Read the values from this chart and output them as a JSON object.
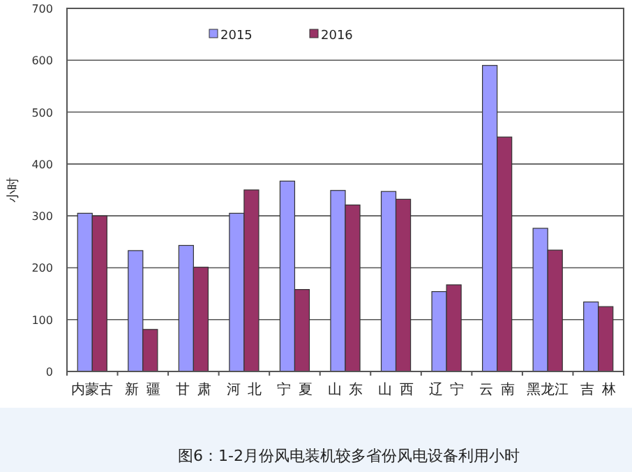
{
  "chart_data": {
    "type": "bar",
    "categories": [
      "内蒙古",
      "新疆",
      "甘肃",
      "河北",
      "宁夏",
      "山东",
      "山西",
      "辽宁",
      "云南",
      "黑龙江",
      "吉林"
    ],
    "series": [
      {
        "name": "2015",
        "color": "#9999ff",
        "values": [
          305,
          233,
          243,
          305,
          367,
          349,
          347,
          154,
          590,
          276,
          134
        ]
      },
      {
        "name": "2016",
        "color": "#993366",
        "values": [
          300,
          81,
          201,
          350,
          158,
          321,
          332,
          167,
          452,
          234,
          125
        ]
      }
    ],
    "ylabel": "小时",
    "ylim": [
      0,
      700
    ],
    "yticks": [
      0,
      100,
      200,
      300,
      400,
      500,
      600,
      700
    ],
    "grid": "y",
    "legend": "top",
    "annotations": [
      "图6：1-2月份风电装机较多省份风电设备利用小时"
    ]
  }
}
